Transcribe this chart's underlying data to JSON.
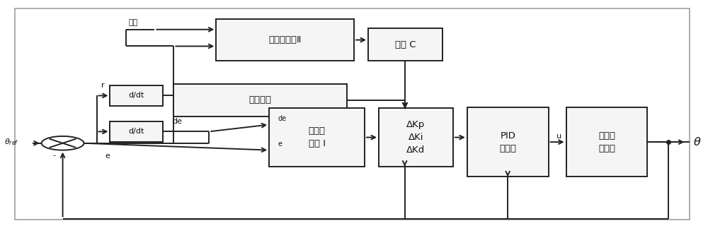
{
  "bg_color": "#ffffff",
  "line_color": "#222222",
  "box_face_color": "#f5f5f5",
  "text_color": "#111111",
  "lw": 1.4,
  "fs": 9.5,
  "fs_small": 8.0,
  "labels": {
    "fuzzy2": "模糊控制器Ⅱ",
    "gainC": "增益 C",
    "fractal": "分形因子",
    "ddt1": "d/dt",
    "ddt2": "d/dt",
    "fuzzy1": "模糊控\n制器 Ⅰ",
    "delta": "ΔKp\nΔKi\nΔKd",
    "pid": "PID\n控制器",
    "aircraft": "尾坐式\n飞行器"
  },
  "airspeed_label": "空速",
  "theta_ref_label": "$\\theta_{ref}$",
  "theta_label": "$\\theta$",
  "u_label": "u",
  "r_label": "r",
  "de_label": "de",
  "e_label": "e",
  "minus_label": "-"
}
